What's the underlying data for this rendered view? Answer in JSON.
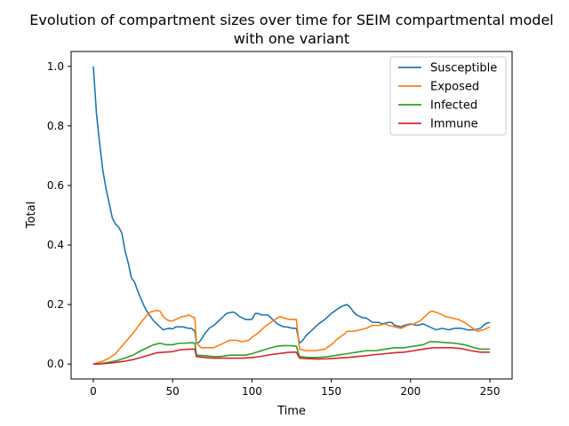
{
  "chart_data": {
    "type": "line",
    "title_lines": [
      "Evolution of compartment sizes over time for SEIM compartmental model",
      "with one variant"
    ],
    "xlabel": "Time",
    "ylabel": "Total",
    "xlim": [
      -14,
      264
    ],
    "ylim": [
      -0.05,
      1.05
    ],
    "xticks": [
      0,
      50,
      100,
      150,
      200,
      250
    ],
    "yticks": [
      0.0,
      0.2,
      0.4,
      0.6,
      0.8,
      1.0
    ],
    "grid": false,
    "legend_position": "top-right",
    "series": [
      {
        "name": "Susceptible",
        "color": "#1f77b4",
        "points": [
          [
            0,
            1.0
          ],
          [
            2,
            0.84
          ],
          [
            4,
            0.74
          ],
          [
            6,
            0.65
          ],
          [
            8,
            0.59
          ],
          [
            10,
            0.54
          ],
          [
            12,
            0.49
          ],
          [
            14,
            0.47
          ],
          [
            16,
            0.46
          ],
          [
            18,
            0.44
          ],
          [
            20,
            0.38
          ],
          [
            22,
            0.34
          ],
          [
            24,
            0.29
          ],
          [
            26,
            0.275
          ],
          [
            28,
            0.245
          ],
          [
            30,
            0.22
          ],
          [
            32,
            0.195
          ],
          [
            34,
            0.175
          ],
          [
            36,
            0.16
          ],
          [
            38,
            0.145
          ],
          [
            40,
            0.135
          ],
          [
            42,
            0.125
          ],
          [
            44,
            0.115
          ],
          [
            46,
            0.118
          ],
          [
            48,
            0.12
          ],
          [
            50,
            0.118
          ],
          [
            52,
            0.125
          ],
          [
            54,
            0.125
          ],
          [
            56,
            0.125
          ],
          [
            58,
            0.123
          ],
          [
            60,
            0.12
          ],
          [
            62,
            0.12
          ],
          [
            64,
            0.11
          ],
          [
            65,
            0.07
          ],
          [
            67,
            0.075
          ],
          [
            70,
            0.1
          ],
          [
            73,
            0.12
          ],
          [
            76,
            0.13
          ],
          [
            80,
            0.15
          ],
          [
            84,
            0.17
          ],
          [
            88,
            0.175
          ],
          [
            90,
            0.17
          ],
          [
            92,
            0.16
          ],
          [
            96,
            0.15
          ],
          [
            100,
            0.15
          ],
          [
            102,
            0.17
          ],
          [
            104,
            0.17
          ],
          [
            106,
            0.165
          ],
          [
            110,
            0.165
          ],
          [
            112,
            0.155
          ],
          [
            114,
            0.145
          ],
          [
            116,
            0.135
          ],
          [
            118,
            0.13
          ],
          [
            120,
            0.125
          ],
          [
            122,
            0.125
          ],
          [
            124,
            0.122
          ],
          [
            126,
            0.12
          ],
          [
            128,
            0.12
          ],
          [
            130,
            0.07
          ],
          [
            132,
            0.08
          ],
          [
            134,
            0.095
          ],
          [
            138,
            0.115
          ],
          [
            142,
            0.135
          ],
          [
            146,
            0.15
          ],
          [
            150,
            0.17
          ],
          [
            154,
            0.185
          ],
          [
            157,
            0.195
          ],
          [
            160,
            0.2
          ],
          [
            162,
            0.19
          ],
          [
            164,
            0.175
          ],
          [
            166,
            0.165
          ],
          [
            168,
            0.16
          ],
          [
            170,
            0.155
          ],
          [
            172,
            0.155
          ],
          [
            176,
            0.14
          ],
          [
            180,
            0.14
          ],
          [
            182,
            0.135
          ],
          [
            186,
            0.14
          ],
          [
            188,
            0.14
          ],
          [
            190,
            0.13
          ],
          [
            194,
            0.125
          ],
          [
            196,
            0.13
          ],
          [
            200,
            0.135
          ],
          [
            204,
            0.13
          ],
          [
            208,
            0.135
          ],
          [
            212,
            0.125
          ],
          [
            216,
            0.115
          ],
          [
            220,
            0.12
          ],
          [
            224,
            0.115
          ],
          [
            228,
            0.12
          ],
          [
            232,
            0.12
          ],
          [
            236,
            0.115
          ],
          [
            240,
            0.115
          ],
          [
            244,
            0.12
          ],
          [
            247,
            0.135
          ],
          [
            250,
            0.14
          ]
        ]
      },
      {
        "name": "Exposed",
        "color": "#ff7f0e",
        "points": [
          [
            0,
            0.0
          ],
          [
            3,
            0.005
          ],
          [
            6,
            0.01
          ],
          [
            10,
            0.02
          ],
          [
            14,
            0.035
          ],
          [
            18,
            0.06
          ],
          [
            22,
            0.085
          ],
          [
            26,
            0.11
          ],
          [
            30,
            0.14
          ],
          [
            34,
            0.165
          ],
          [
            36,
            0.175
          ],
          [
            40,
            0.18
          ],
          [
            42,
            0.178
          ],
          [
            44,
            0.16
          ],
          [
            46,
            0.15
          ],
          [
            48,
            0.145
          ],
          [
            50,
            0.145
          ],
          [
            52,
            0.15
          ],
          [
            54,
            0.155
          ],
          [
            56,
            0.16
          ],
          [
            58,
            0.16
          ],
          [
            60,
            0.165
          ],
          [
            62,
            0.16
          ],
          [
            64,
            0.155
          ],
          [
            65,
            0.07
          ],
          [
            68,
            0.055
          ],
          [
            72,
            0.055
          ],
          [
            76,
            0.055
          ],
          [
            80,
            0.065
          ],
          [
            84,
            0.075
          ],
          [
            86,
            0.08
          ],
          [
            90,
            0.08
          ],
          [
            94,
            0.075
          ],
          [
            98,
            0.08
          ],
          [
            100,
            0.09
          ],
          [
            104,
            0.105
          ],
          [
            108,
            0.125
          ],
          [
            112,
            0.14
          ],
          [
            116,
            0.155
          ],
          [
            118,
            0.16
          ],
          [
            120,
            0.155
          ],
          [
            124,
            0.15
          ],
          [
            128,
            0.15
          ],
          [
            130,
            0.05
          ],
          [
            134,
            0.045
          ],
          [
            140,
            0.045
          ],
          [
            146,
            0.05
          ],
          [
            150,
            0.065
          ],
          [
            154,
            0.085
          ],
          [
            158,
            0.1
          ],
          [
            160,
            0.11
          ],
          [
            164,
            0.11
          ],
          [
            168,
            0.115
          ],
          [
            172,
            0.12
          ],
          [
            176,
            0.13
          ],
          [
            180,
            0.13
          ],
          [
            184,
            0.135
          ],
          [
            186,
            0.13
          ],
          [
            190,
            0.125
          ],
          [
            194,
            0.12
          ],
          [
            198,
            0.13
          ],
          [
            202,
            0.135
          ],
          [
            206,
            0.145
          ],
          [
            210,
            0.165
          ],
          [
            212,
            0.175
          ],
          [
            214,
            0.178
          ],
          [
            218,
            0.17
          ],
          [
            222,
            0.16
          ],
          [
            226,
            0.155
          ],
          [
            230,
            0.15
          ],
          [
            234,
            0.14
          ],
          [
            238,
            0.125
          ],
          [
            242,
            0.11
          ],
          [
            246,
            0.115
          ],
          [
            250,
            0.125
          ]
        ]
      },
      {
        "name": "Infected",
        "color": "#2ca02c",
        "points": [
          [
            0,
            0.0
          ],
          [
            5,
            0.002
          ],
          [
            10,
            0.006
          ],
          [
            15,
            0.012
          ],
          [
            20,
            0.02
          ],
          [
            25,
            0.03
          ],
          [
            30,
            0.045
          ],
          [
            34,
            0.055
          ],
          [
            38,
            0.065
          ],
          [
            42,
            0.07
          ],
          [
            46,
            0.065
          ],
          [
            50,
            0.065
          ],
          [
            54,
            0.07
          ],
          [
            58,
            0.07
          ],
          [
            62,
            0.072
          ],
          [
            64,
            0.07
          ],
          [
            65,
            0.03
          ],
          [
            70,
            0.028
          ],
          [
            76,
            0.025
          ],
          [
            80,
            0.025
          ],
          [
            86,
            0.03
          ],
          [
            90,
            0.03
          ],
          [
            96,
            0.03
          ],
          [
            100,
            0.035
          ],
          [
            106,
            0.045
          ],
          [
            112,
            0.055
          ],
          [
            116,
            0.06
          ],
          [
            120,
            0.062
          ],
          [
            124,
            0.062
          ],
          [
            128,
            0.06
          ],
          [
            130,
            0.025
          ],
          [
            136,
            0.022
          ],
          [
            142,
            0.022
          ],
          [
            148,
            0.025
          ],
          [
            154,
            0.03
          ],
          [
            160,
            0.035
          ],
          [
            166,
            0.04
          ],
          [
            172,
            0.045
          ],
          [
            178,
            0.045
          ],
          [
            184,
            0.05
          ],
          [
            190,
            0.055
          ],
          [
            196,
            0.055
          ],
          [
            202,
            0.06
          ],
          [
            208,
            0.065
          ],
          [
            212,
            0.075
          ],
          [
            216,
            0.075
          ],
          [
            222,
            0.072
          ],
          [
            228,
            0.07
          ],
          [
            234,
            0.065
          ],
          [
            240,
            0.055
          ],
          [
            244,
            0.05
          ],
          [
            250,
            0.05
          ]
        ]
      },
      {
        "name": "Immune",
        "color": "#d62728",
        "points": [
          [
            0,
            0.0
          ],
          [
            5,
            0.001
          ],
          [
            10,
            0.003
          ],
          [
            15,
            0.006
          ],
          [
            20,
            0.01
          ],
          [
            25,
            0.015
          ],
          [
            30,
            0.022
          ],
          [
            35,
            0.03
          ],
          [
            40,
            0.038
          ],
          [
            45,
            0.04
          ],
          [
            50,
            0.042
          ],
          [
            55,
            0.048
          ],
          [
            60,
            0.05
          ],
          [
            64,
            0.05
          ],
          [
            65,
            0.025
          ],
          [
            70,
            0.022
          ],
          [
            76,
            0.02
          ],
          [
            82,
            0.02
          ],
          [
            88,
            0.02
          ],
          [
            94,
            0.02
          ],
          [
            100,
            0.022
          ],
          [
            106,
            0.026
          ],
          [
            112,
            0.032
          ],
          [
            118,
            0.036
          ],
          [
            124,
            0.04
          ],
          [
            128,
            0.04
          ],
          [
            130,
            0.02
          ],
          [
            136,
            0.018
          ],
          [
            142,
            0.017
          ],
          [
            148,
            0.018
          ],
          [
            154,
            0.02
          ],
          [
            160,
            0.022
          ],
          [
            166,
            0.025
          ],
          [
            172,
            0.028
          ],
          [
            178,
            0.032
          ],
          [
            184,
            0.035
          ],
          [
            190,
            0.038
          ],
          [
            196,
            0.04
          ],
          [
            202,
            0.045
          ],
          [
            208,
            0.05
          ],
          [
            214,
            0.055
          ],
          [
            220,
            0.055
          ],
          [
            226,
            0.055
          ],
          [
            232,
            0.052
          ],
          [
            238,
            0.045
          ],
          [
            244,
            0.04
          ],
          [
            250,
            0.04
          ]
        ]
      }
    ]
  }
}
